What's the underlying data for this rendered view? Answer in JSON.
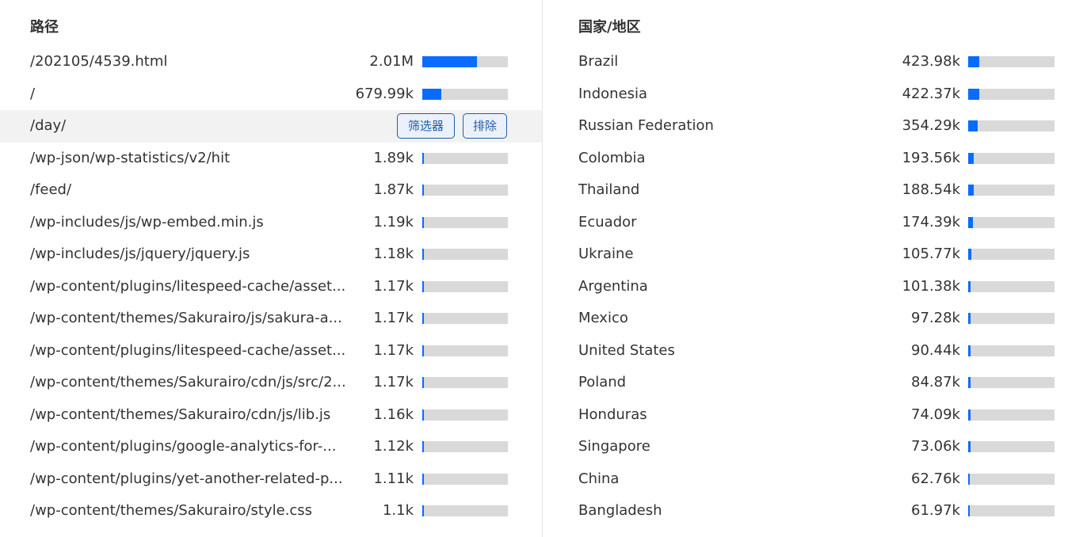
{
  "left_panel": {
    "title": "路径",
    "actions": {
      "filter_label": "筛选器",
      "exclude_label": "排除"
    },
    "rows": [
      {
        "label": "/202105/4539.html",
        "value": "2.01M",
        "fraction": 0.64
      },
      {
        "label": "/",
        "value": "679.99k",
        "fraction": 0.22
      },
      {
        "label": "/day/",
        "value": "",
        "fraction": 0,
        "highlighted": true
      },
      {
        "label": "/wp-json/wp-statistics/v2/hit",
        "value": "1.89k",
        "fraction": 0.004
      },
      {
        "label": "/feed/",
        "value": "1.87k",
        "fraction": 0.004
      },
      {
        "label": "/wp-includes/js/wp-embed.min.js",
        "value": "1.19k",
        "fraction": 0.003
      },
      {
        "label": "/wp-includes/js/jquery/jquery.js",
        "value": "1.18k",
        "fraction": 0.003
      },
      {
        "label": "/wp-content/plugins/litespeed-cache/asset...",
        "value": "1.17k",
        "fraction": 0.003
      },
      {
        "label": "/wp-content/themes/Sakurairo/js/sakura-a...",
        "value": "1.17k",
        "fraction": 0.003
      },
      {
        "label": "/wp-content/plugins/litespeed-cache/asset...",
        "value": "1.17k",
        "fraction": 0.003
      },
      {
        "label": "/wp-content/themes/Sakurairo/cdn/js/src/2...",
        "value": "1.17k",
        "fraction": 0.003
      },
      {
        "label": "/wp-content/themes/Sakurairo/cdn/js/lib.js",
        "value": "1.16k",
        "fraction": 0.003
      },
      {
        "label": "/wp-content/plugins/google-analytics-for-...",
        "value": "1.12k",
        "fraction": 0.003
      },
      {
        "label": "/wp-content/plugins/yet-another-related-p...",
        "value": "1.11k",
        "fraction": 0.003
      },
      {
        "label": "/wp-content/themes/Sakurairo/style.css",
        "value": "1.1k",
        "fraction": 0.003
      }
    ]
  },
  "right_panel": {
    "title": "国家/地区",
    "rows": [
      {
        "label": "Brazil",
        "value": "423.98k",
        "fraction": 0.13
      },
      {
        "label": "Indonesia",
        "value": "422.37k",
        "fraction": 0.13
      },
      {
        "label": "Russian Federation",
        "value": "354.29k",
        "fraction": 0.11
      },
      {
        "label": "Colombia",
        "value": "193.56k",
        "fraction": 0.06
      },
      {
        "label": "Thailand",
        "value": "188.54k",
        "fraction": 0.06
      },
      {
        "label": "Ecuador",
        "value": "174.39k",
        "fraction": 0.055
      },
      {
        "label": "Ukraine",
        "value": "105.77k",
        "fraction": 0.035
      },
      {
        "label": "Argentina",
        "value": "101.38k",
        "fraction": 0.032
      },
      {
        "label": "Mexico",
        "value": "97.28k",
        "fraction": 0.03
      },
      {
        "label": "United States",
        "value": "90.44k",
        "fraction": 0.028
      },
      {
        "label": "Poland",
        "value": "84.87k",
        "fraction": 0.026
      },
      {
        "label": "Honduras",
        "value": "74.09k",
        "fraction": 0.023
      },
      {
        "label": "Singapore",
        "value": "73.06k",
        "fraction": 0.023
      },
      {
        "label": "China",
        "value": "62.76k",
        "fraction": 0.02
      },
      {
        "label": "Bangladesh",
        "value": "61.97k",
        "fraction": 0.02
      }
    ]
  },
  "colors": {
    "bar_fill": "#0a6cff",
    "bar_track": "#d9d9d9",
    "row_highlight": "#f2f2f2",
    "button_border": "#1f5fa8"
  }
}
